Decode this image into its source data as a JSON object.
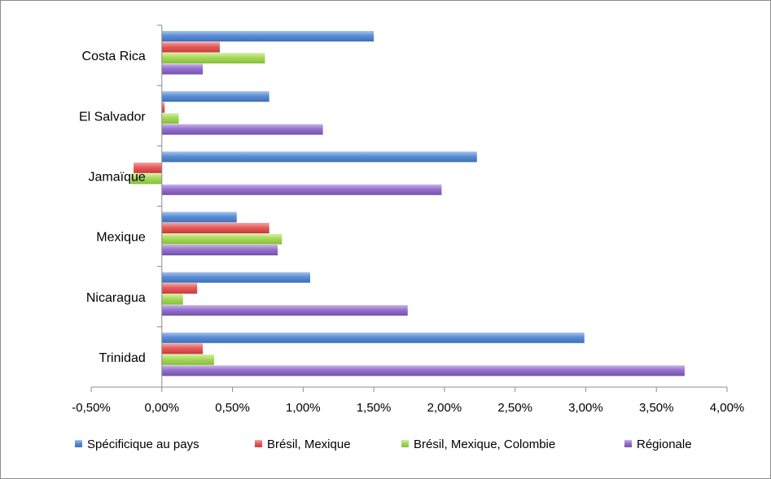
{
  "chart_data": {
    "type": "bar",
    "orientation": "horizontal",
    "categories": [
      "Costa Rica",
      "El Salvador",
      "Jamaïque",
      "Mexique",
      "Nicaragua",
      "Trinidad"
    ],
    "series": [
      {
        "name": "Spécificique au pays",
        "color": "#4f81bd",
        "values": [
          0.015,
          0.0076,
          0.0223,
          0.0053,
          0.0105,
          0.0299
        ]
      },
      {
        "name": "Brésil, Mexique",
        "color": "#e05050",
        "values": [
          0.0041,
          0.0002,
          -0.002,
          0.0076,
          0.0025,
          0.0029
        ]
      },
      {
        "name": "Brésil, Mexique, Colombie",
        "color": "#9bd050",
        "values": [
          0.0073,
          0.0012,
          -0.0022,
          0.0085,
          0.0015,
          0.0037
        ]
      },
      {
        "name": "Régionale",
        "color": "#8f67c8",
        "values": [
          0.0029,
          0.0114,
          0.0198,
          0.0082,
          0.0174,
          0.037
        ]
      }
    ],
    "xlim": [
      -0.005,
      0.04
    ],
    "xticks": [
      -0.005,
      0.0,
      0.005,
      0.01,
      0.015,
      0.02,
      0.025,
      0.03,
      0.035,
      0.04
    ],
    "xtick_labels": [
      "-0,50%",
      "0,00%",
      "0,50%",
      "1,00%",
      "1,50%",
      "2,00%",
      "2,50%",
      "3,00%",
      "3,50%",
      "4,00%"
    ],
    "legend_position": "bottom",
    "grid": false
  }
}
